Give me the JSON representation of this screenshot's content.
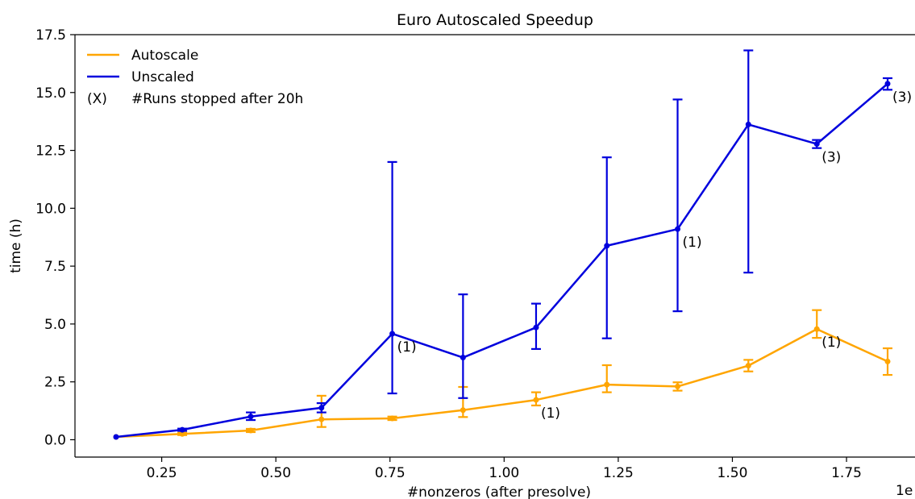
{
  "chart_data": {
    "type": "line",
    "title": "Euro Autoscaled Speedup",
    "xlabel": "#nonzeros (after presolve)",
    "ylabel": "time (h)",
    "x_offset_label": "1e",
    "xlim": [
      0.06,
      1.9
    ],
    "ylim": [
      -0.75,
      17.5
    ],
    "xticks": [
      0.25,
      0.5,
      0.75,
      1.0,
      1.25,
      1.5,
      1.75
    ],
    "xtick_labels": [
      "0.25",
      "0.50",
      "0.75",
      "1.00",
      "1.25",
      "1.50",
      "1.75"
    ],
    "yticks": [
      0,
      2.5,
      5,
      7.5,
      10,
      12.5,
      15,
      17.5
    ],
    "ytick_labels": [
      "0.0",
      "2.5",
      "5.0",
      "7.5",
      "10.0",
      "12.5",
      "15.0",
      "17.5"
    ],
    "legend_position": "top-left",
    "legend_note": {
      "marker": "(X)",
      "text": "#Runs stopped after 20h"
    },
    "series": [
      {
        "name": "Autoscale",
        "color": "#FFA500",
        "x": [
          0.15,
          0.295,
          0.445,
          0.6,
          0.755,
          0.91,
          1.07,
          1.225,
          1.38,
          1.535,
          1.685,
          1.84
        ],
        "y": [
          0.12,
          0.25,
          0.4,
          0.88,
          0.92,
          1.28,
          1.72,
          2.38,
          2.3,
          3.2,
          4.78,
          3.38
        ],
        "err_low": [
          0.12,
          0.2,
          0.33,
          0.55,
          0.85,
          0.98,
          1.48,
          2.05,
          2.12,
          2.95,
          4.4,
          2.8
        ],
        "err_high": [
          0.12,
          0.3,
          0.47,
          1.9,
          1.0,
          2.28,
          2.05,
          3.22,
          2.48,
          3.45,
          5.6,
          3.95
        ],
        "annotations": [
          {
            "x": 1.07,
            "y": 1.72,
            "text": "(1)"
          },
          {
            "x": 1.685,
            "y": 4.78,
            "text": "(1)"
          }
        ]
      },
      {
        "name": "Unscaled",
        "color": "#0000DD",
        "x": [
          0.15,
          0.295,
          0.445,
          0.6,
          0.755,
          0.91,
          1.07,
          1.225,
          1.38,
          1.535,
          1.685,
          1.84
        ],
        "y": [
          0.12,
          0.43,
          1.0,
          1.38,
          4.58,
          3.55,
          4.85,
          8.38,
          9.1,
          13.62,
          12.78,
          15.38
        ],
        "err_low": [
          0.12,
          0.38,
          0.85,
          1.18,
          2.0,
          1.8,
          3.92,
          4.38,
          5.55,
          7.22,
          12.6,
          15.12
        ],
        "err_high": [
          0.12,
          0.48,
          1.18,
          1.58,
          12.0,
          6.28,
          5.88,
          12.2,
          14.7,
          16.82,
          12.95,
          15.62
        ],
        "annotations": [
          {
            "x": 0.755,
            "y": 4.58,
            "text": "(1)"
          },
          {
            "x": 1.38,
            "y": 9.1,
            "text": "(1)"
          },
          {
            "x": 1.685,
            "y": 12.78,
            "text": "(3)"
          },
          {
            "x": 1.84,
            "y": 15.38,
            "text": "(3)"
          }
        ]
      }
    ]
  }
}
